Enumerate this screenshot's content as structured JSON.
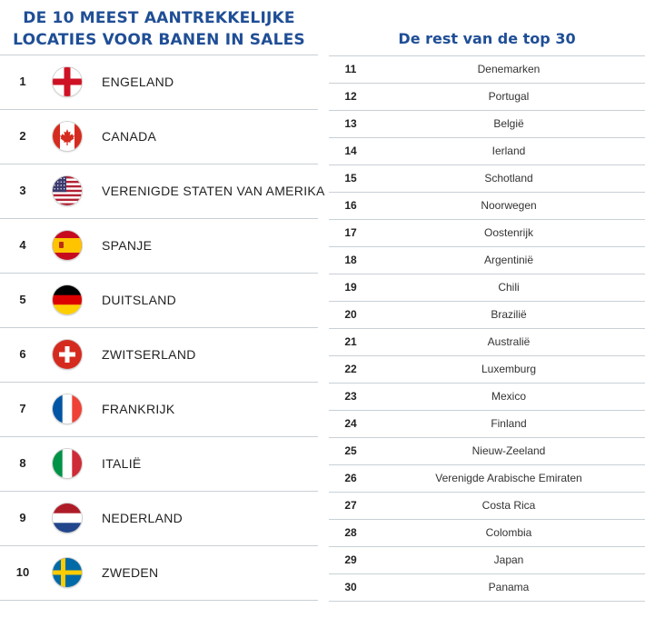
{
  "left_panel": {
    "title_line1": "DE 10 MEEST AANTREKKELIJKE",
    "title_line2": "LOCATIES VOOR BANEN IN SALES",
    "items": [
      {
        "rank": "1",
        "name": "ENGELAND",
        "flag": "england-flag-icon"
      },
      {
        "rank": "2",
        "name": "CANADA",
        "flag": "canada-flag-icon"
      },
      {
        "rank": "3",
        "name": "VERENIGDE STATEN VAN AMERIKA",
        "flag": "usa-flag-icon"
      },
      {
        "rank": "4",
        "name": "SPANJE",
        "flag": "spain-flag-icon"
      },
      {
        "rank": "5",
        "name": "DUITSLAND",
        "flag": "germany-flag-icon"
      },
      {
        "rank": "6",
        "name": "ZWITSERLAND",
        "flag": "switzerland-flag-icon"
      },
      {
        "rank": "7",
        "name": "FRANKRIJK",
        "flag": "france-flag-icon"
      },
      {
        "rank": "8",
        "name": "ITALIË",
        "flag": "italy-flag-icon"
      },
      {
        "rank": "9",
        "name": "NEDERLAND",
        "flag": "netherlands-flag-icon"
      },
      {
        "rank": "10",
        "name": "ZWEDEN",
        "flag": "sweden-flag-icon"
      }
    ]
  },
  "right_panel": {
    "title": "De rest van de top 30",
    "items": [
      {
        "rank": "11",
        "name": "Denemarken"
      },
      {
        "rank": "12",
        "name": "Portugal"
      },
      {
        "rank": "13",
        "name": "België"
      },
      {
        "rank": "14",
        "name": "Ierland"
      },
      {
        "rank": "15",
        "name": "Schotland"
      },
      {
        "rank": "16",
        "name": "Noorwegen"
      },
      {
        "rank": "17",
        "name": "Oostenrijk"
      },
      {
        "rank": "18",
        "name": "Argentinië"
      },
      {
        "rank": "19",
        "name": "Chili"
      },
      {
        "rank": "20",
        "name": "Brazilië"
      },
      {
        "rank": "21",
        "name": "Australië"
      },
      {
        "rank": "22",
        "name": "Luxemburg"
      },
      {
        "rank": "23",
        "name": "Mexico"
      },
      {
        "rank": "24",
        "name": "Finland"
      },
      {
        "rank": "25",
        "name": "Nieuw-Zeeland"
      },
      {
        "rank": "26",
        "name": "Verenigde Arabische Emiraten"
      },
      {
        "rank": "27",
        "name": "Costa Rica"
      },
      {
        "rank": "28",
        "name": "Colombia"
      },
      {
        "rank": "29",
        "name": "Japan"
      },
      {
        "rank": "30",
        "name": "Panama"
      }
    ]
  },
  "colors": {
    "title_blue": "#1f4e96",
    "rule_grey": "#c8d0d6"
  }
}
